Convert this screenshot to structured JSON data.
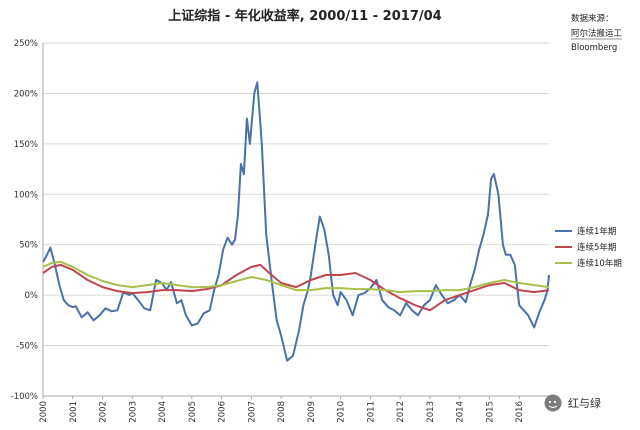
{
  "chart_data": {
    "type": "line",
    "title": "上证综指 - 年化收益率, 2000/11 - 2017/04",
    "source_lines": [
      "数据来源：",
      "阿尔法搬运工",
      "Bloomberg"
    ],
    "ylim": [
      -100,
      250
    ],
    "yticks": [
      -100,
      -50,
      0,
      50,
      100,
      150,
      200,
      250
    ],
    "ytick_labels": [
      "-100%",
      "-50%",
      "0%",
      "50%",
      "100%",
      "150%",
      "200%",
      "250%"
    ],
    "xlim": [
      2000,
      2017
    ],
    "xticks": [
      2000,
      2001,
      2002,
      2003,
      2004,
      2005,
      2006,
      2007,
      2008,
      2009,
      2010,
      2011,
      2012,
      2013,
      2014,
      2015,
      2016
    ],
    "xtick_labels": [
      "2000",
      "2001",
      "2002",
      "2003",
      "2004",
      "2005",
      "2006",
      "2007",
      "2008",
      "2009",
      "2010",
      "2011",
      "2012",
      "2013",
      "2014",
      "2015",
      "2016"
    ],
    "grid": true,
    "legend_position": "right",
    "series": [
      {
        "name": "连续1年期",
        "color": "#4a72a8",
        "x": [
          2000.0,
          2000.1,
          2000.25,
          2000.4,
          2000.55,
          2000.7,
          2000.85,
          2001.0,
          2001.1,
          2001.3,
          2001.5,
          2001.7,
          2001.9,
          2002.1,
          2002.3,
          2002.5,
          2002.7,
          2002.9,
          2003.0,
          2003.2,
          2003.4,
          2003.6,
          2003.8,
          2004.0,
          2004.15,
          2004.3,
          2004.5,
          2004.65,
          2004.8,
          2005.0,
          2005.2,
          2005.4,
          2005.6,
          2005.75,
          2005.9,
          2006.05,
          2006.2,
          2006.35,
          2006.45,
          2006.55,
          2006.65,
          2006.75,
          2006.85,
          2006.95,
          2007.1,
          2007.2,
          2007.35,
          2007.5,
          2007.7,
          2007.85,
          2008.0,
          2008.2,
          2008.4,
          2008.6,
          2008.75,
          2008.9,
          2009.0,
          2009.15,
          2009.3,
          2009.45,
          2009.6,
          2009.75,
          2009.9,
          2010.0,
          2010.2,
          2010.4,
          2010.6,
          2010.8,
          2011.0,
          2011.2,
          2011.4,
          2011.6,
          2011.8,
          2012.0,
          2012.2,
          2012.4,
          2012.6,
          2012.8,
          2013.0,
          2013.2,
          2013.4,
          2013.6,
          2013.8,
          2014.0,
          2014.2,
          2014.35,
          2014.5,
          2014.65,
          2014.8,
          2014.95,
          2015.05,
          2015.15,
          2015.3,
          2015.45,
          2015.55,
          2015.7,
          2015.85,
          2016.0,
          2016.15,
          2016.3,
          2016.5,
          2016.7,
          2016.85,
          2016.95,
          2017.0
        ],
        "y": [
          33,
          38,
          47,
          30,
          10,
          -5,
          -10,
          -12,
          -11,
          -22,
          -17,
          -25,
          -20,
          -13,
          -16,
          -15,
          3,
          0,
          2,
          -5,
          -13,
          -15,
          15,
          12,
          5,
          13,
          -8,
          -5,
          -20,
          -30,
          -28,
          -18,
          -15,
          5,
          20,
          45,
          57,
          50,
          55,
          80,
          130,
          120,
          175,
          150,
          200,
          211,
          150,
          60,
          10,
          -25,
          -40,
          -65,
          -60,
          -35,
          -10,
          5,
          20,
          50,
          78,
          65,
          40,
          0,
          -10,
          3,
          -5,
          -20,
          0,
          2,
          7,
          15,
          -5,
          -12,
          -15,
          -20,
          -8,
          -15,
          -20,
          -10,
          -5,
          10,
          0,
          -8,
          -5,
          0,
          -7,
          10,
          25,
          45,
          60,
          80,
          115,
          120,
          100,
          50,
          40,
          40,
          30,
          -10,
          -15,
          -20,
          -32,
          -15,
          -5,
          5,
          20
        ]
      },
      {
        "name": "连续5年期",
        "color": "#c0464e",
        "x": [
          2000.0,
          2000.3,
          2000.6,
          2001.0,
          2001.5,
          2002.0,
          2002.5,
          2003.0,
          2003.5,
          2004.0,
          2004.5,
          2005.0,
          2005.5,
          2006.0,
          2006.5,
          2007.0,
          2007.3,
          2007.6,
          2008.0,
          2008.5,
          2009.0,
          2009.5,
          2010.0,
          2010.5,
          2011.0,
          2011.5,
          2012.0,
          2012.5,
          2013.0,
          2013.5,
          2014.0,
          2014.5,
          2015.0,
          2015.5,
          2016.0,
          2016.5,
          2017.0
        ],
        "y": [
          22,
          28,
          30,
          25,
          15,
          8,
          4,
          2,
          3,
          5,
          5,
          4,
          6,
          10,
          20,
          28,
          30,
          22,
          12,
          8,
          15,
          20,
          20,
          22,
          15,
          5,
          -3,
          -10,
          -15,
          -5,
          0,
          5,
          10,
          12,
          5,
          3,
          5
        ]
      },
      {
        "name": "连续10年期",
        "color": "#a8c04a",
        "x": [
          2000.0,
          2000.3,
          2000.6,
          2001.0,
          2001.5,
          2002.0,
          2002.5,
          2003.0,
          2003.5,
          2004.0,
          2004.5,
          2005.0,
          2005.5,
          2006.0,
          2006.5,
          2007.0,
          2007.5,
          2008.0,
          2008.5,
          2009.0,
          2009.5,
          2010.0,
          2010.5,
          2011.0,
          2011.5,
          2012.0,
          2012.5,
          2013.0,
          2013.5,
          2014.0,
          2014.5,
          2015.0,
          2015.5,
          2016.0,
          2016.5,
          2017.0
        ],
        "y": [
          28,
          32,
          33,
          28,
          20,
          14,
          10,
          8,
          10,
          12,
          10,
          8,
          8,
          10,
          14,
          18,
          15,
          10,
          5,
          5,
          7,
          7,
          6,
          6,
          5,
          3,
          4,
          4,
          5,
          5,
          8,
          12,
          15,
          12,
          10,
          8
        ]
      }
    ]
  },
  "watermark": {
    "icon": "wechat-icon",
    "label": "红与绿"
  }
}
